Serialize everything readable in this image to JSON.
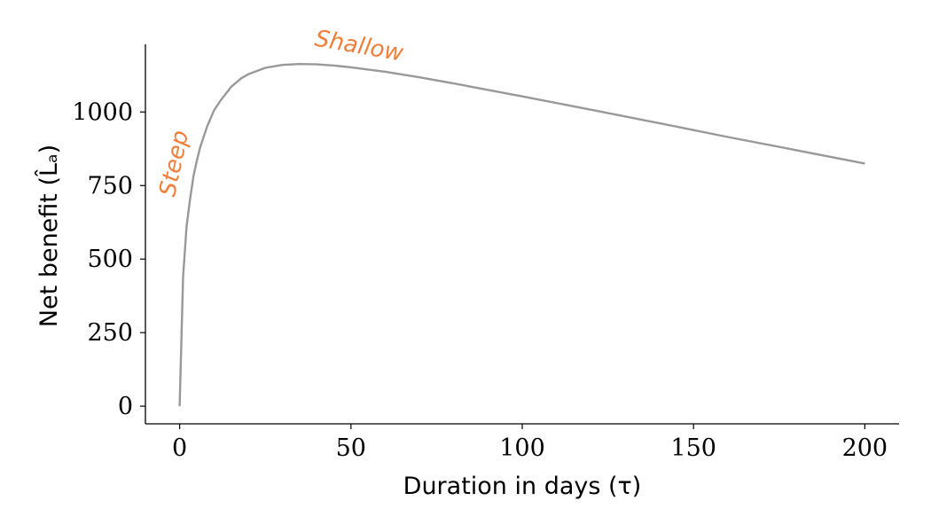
{
  "chart_data": {
    "type": "line",
    "title": "",
    "xlabel": "Duration in days (τ)",
    "ylabel": "Net benefit (L̂ₐ)",
    "xlim": [
      -10,
      210
    ],
    "ylim": [
      -60,
      1230
    ],
    "x_ticks": [
      0,
      50,
      100,
      150,
      200
    ],
    "x_tick_labels": [
      "0",
      "50",
      "100",
      "150",
      "200"
    ],
    "y_ticks": [
      0,
      250,
      500,
      750,
      1000
    ],
    "y_tick_labels": [
      "0",
      "250",
      "500",
      "750",
      "1000"
    ],
    "grid": false,
    "series": [
      {
        "color": "#999999",
        "x": [
          0,
          1,
          2,
          3,
          4,
          5,
          6,
          8,
          10,
          12,
          15,
          18,
          20,
          25,
          30,
          35,
          40,
          45,
          50,
          60,
          70,
          80,
          90,
          100,
          120,
          140,
          160,
          180,
          200
        ],
        "y": [
          0,
          440,
          610,
          700,
          780,
          835,
          880,
          950,
          1005,
          1040,
          1085,
          1115,
          1128,
          1150,
          1160,
          1163,
          1162,
          1158,
          1152,
          1137,
          1118,
          1097,
          1075,
          1053,
          1008,
          962,
          915,
          870,
          825
        ]
      }
    ],
    "annotations": [
      {
        "text": "Steep",
        "x": 0.5,
        "y": 820,
        "rotation": -78,
        "color": "#F07F3C"
      },
      {
        "text": "Shallow",
        "x": 52,
        "y": 1200,
        "rotation": 10,
        "color": "#F07F3C"
      }
    ]
  }
}
